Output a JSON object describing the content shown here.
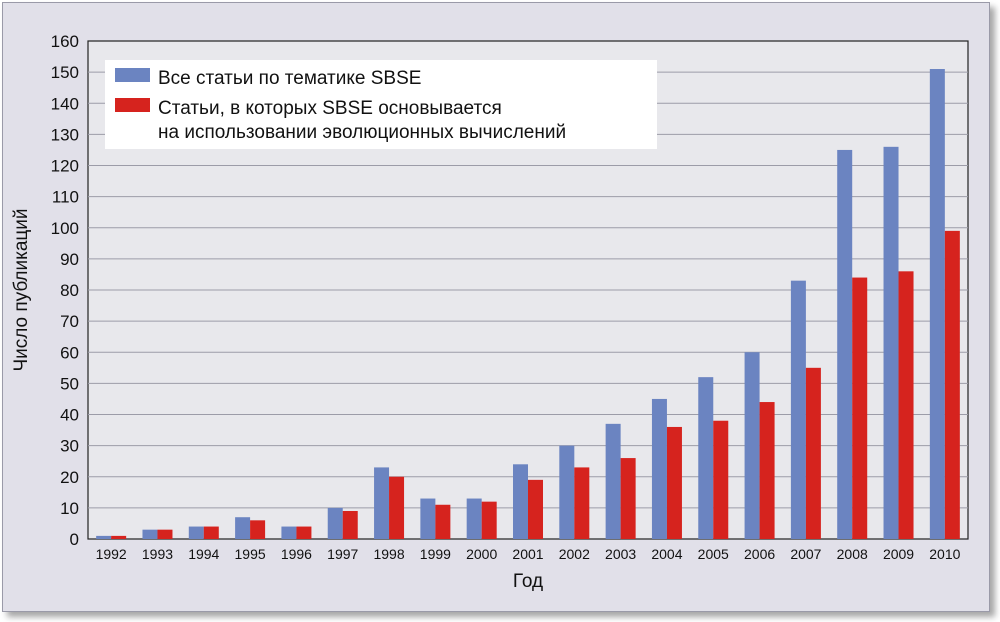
{
  "chart_data": {
    "type": "bar",
    "title": "",
    "xlabel": "Год",
    "ylabel": "Число публикаций",
    "ylim": [
      0,
      160
    ],
    "yticks": [
      0,
      10,
      20,
      30,
      40,
      50,
      60,
      70,
      80,
      90,
      100,
      110,
      120,
      130,
      140,
      150,
      160
    ],
    "grid": true,
    "legend_position": "top-left",
    "categories": [
      "1992",
      "1993",
      "1994",
      "1995",
      "1996",
      "1997",
      "1998",
      "1999",
      "2000",
      "2001",
      "2002",
      "2003",
      "2004",
      "2005",
      "2006",
      "2007",
      "2008",
      "2009",
      "2010"
    ],
    "series": [
      {
        "name": "Все статьи по тематике SBSE",
        "color": "#6b84c1",
        "values": [
          1,
          3,
          4,
          7,
          4,
          10,
          23,
          13,
          13,
          24,
          30,
          37,
          45,
          52,
          60,
          83,
          125,
          126,
          151
        ]
      },
      {
        "name": "Статьи, в которых SBSE основывается\nна использовании эволюционных вычислений",
        "color": "#d6231e",
        "values": [
          1,
          3,
          4,
          6,
          4,
          9,
          20,
          11,
          12,
          19,
          23,
          26,
          36,
          38,
          44,
          55,
          84,
          86,
          99
        ]
      }
    ]
  }
}
